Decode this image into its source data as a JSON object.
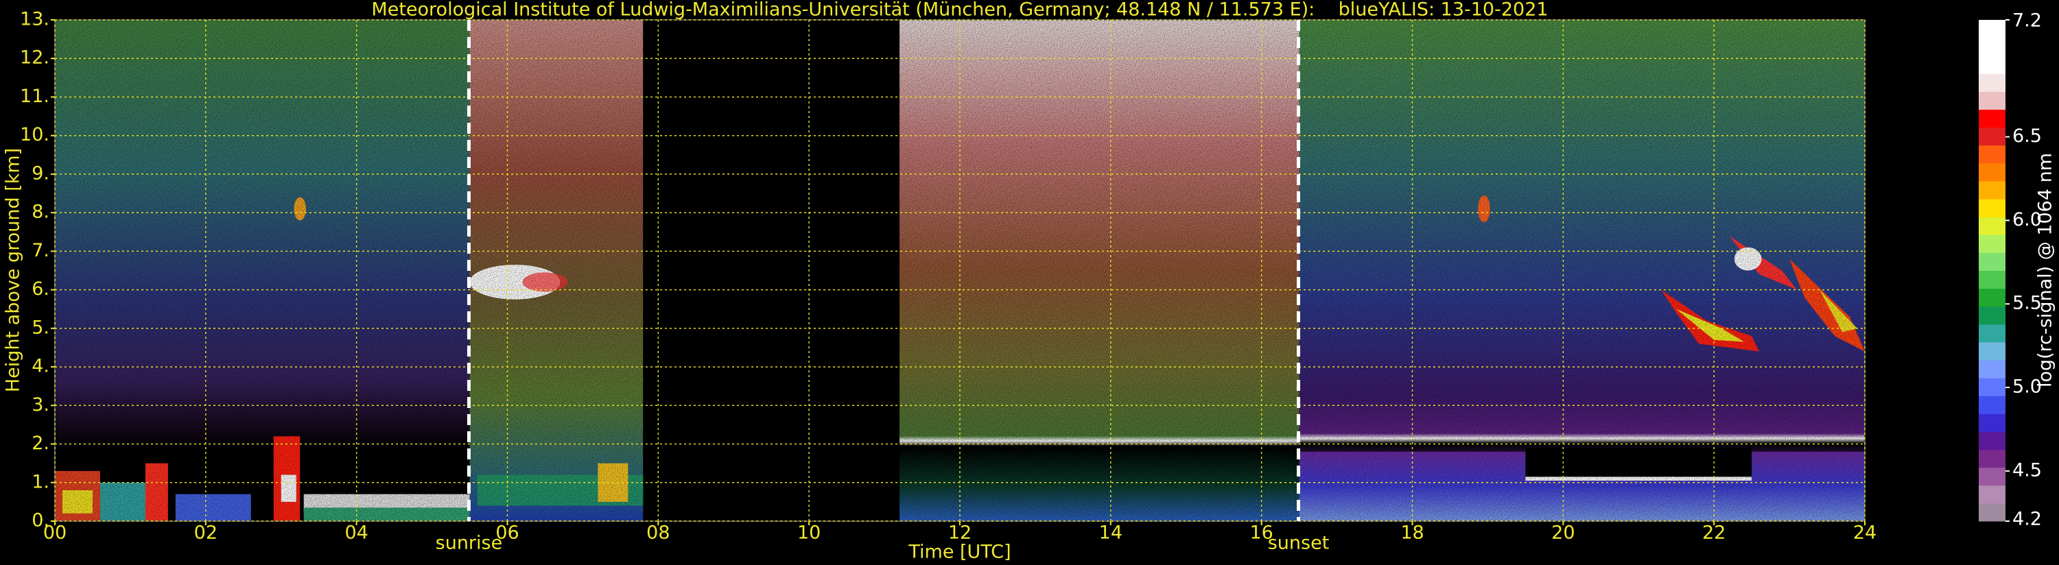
{
  "chart_data": {
    "type": "heatmap",
    "title": "Meteorological Institute of Ludwig-Maximilians-Universität (München, Germany; 48.148 N / 11.573 E):    blueYALIS: 13-10-2021",
    "x_label": "Time [UTC]",
    "y_label": "Height above ground [km]",
    "xlim": [
      0,
      24
    ],
    "ylim": [
      0,
      13
    ],
    "xticks": [
      {
        "value": 0,
        "label": "00"
      },
      {
        "value": 2,
        "label": "02"
      },
      {
        "value": 4,
        "label": "04"
      },
      {
        "value": 6,
        "label": "06"
      },
      {
        "value": 8,
        "label": "08"
      },
      {
        "value": 10,
        "label": "10"
      },
      {
        "value": 12,
        "label": "12"
      },
      {
        "value": 14,
        "label": "14"
      },
      {
        "value": 16,
        "label": "16"
      },
      {
        "value": 18,
        "label": "18"
      },
      {
        "value": 20,
        "label": "20"
      },
      {
        "value": 22,
        "label": "22"
      },
      {
        "value": 24,
        "label": "24"
      }
    ],
    "yticks": [
      {
        "value": 0,
        "label": "0."
      },
      {
        "value": 1,
        "label": "1."
      },
      {
        "value": 2,
        "label": "2."
      },
      {
        "value": 3,
        "label": "3."
      },
      {
        "value": 4,
        "label": "4."
      },
      {
        "value": 5,
        "label": "5."
      },
      {
        "value": 6,
        "label": "6."
      },
      {
        "value": 7,
        "label": "7."
      },
      {
        "value": 8,
        "label": "8."
      },
      {
        "value": 9,
        "label": "9."
      },
      {
        "value": 10,
        "label": "10."
      },
      {
        "value": 11,
        "label": "11."
      },
      {
        "value": 12,
        "label": "12."
      },
      {
        "value": 13,
        "label": "13."
      }
    ],
    "grid": true,
    "grid_color": "#e8e020",
    "text_color": "#f0e830",
    "annotations": [
      {
        "text": "sunrise",
        "x": 5.49
      },
      {
        "text": "sunset",
        "x": 16.49
      }
    ],
    "colorbar": {
      "label": "log(rc-signal) @ 1064 nm",
      "clim": [
        4.2,
        7.2
      ],
      "ticks": [
        4.2,
        4.5,
        {
          "value": 5,
          "label": "5.0"
        },
        5.5,
        {
          "value": 6,
          "label": "6.0"
        },
        6.5,
        7.2
      ],
      "colors": [
        "#a08ca0",
        "#b48cb4",
        "#9a5aa0",
        "#7a2a8a",
        "#5a1a9a",
        "#3a2ad0",
        "#4050f0",
        "#6078ff",
        "#7c9cff",
        "#70b8e0",
        "#30a8a0",
        "#109850",
        "#20a830",
        "#50c850",
        "#80e070",
        "#b0f060",
        "#e0f030",
        "#ffe000",
        "#ffb000",
        "#ff8000",
        "#ff6010",
        "#e02020",
        "#ff0000",
        "#ecc0c0",
        "#f4e4e4",
        "#ffffff",
        "#ffffff",
        "#ffffff"
      ]
    }
  }
}
